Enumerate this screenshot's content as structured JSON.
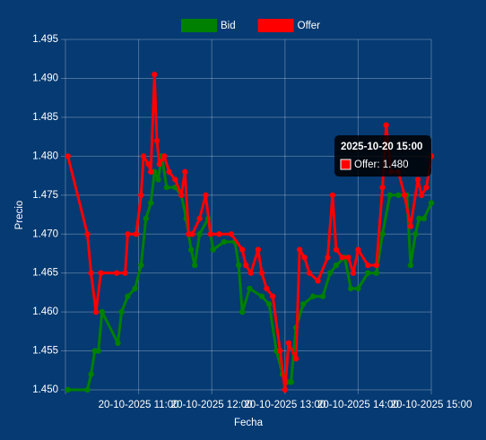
{
  "chart_data": {
    "type": "line",
    "x_label": "Fecha",
    "y_label": "Precio",
    "xlim": [
      "2025-10-20 10:00",
      "2025-10-20 15:00"
    ],
    "xticks": [
      {
        "value": "2025-10-20 11:00",
        "label": "20-10-2025 11:00"
      },
      {
        "value": "2025-10-20 12:00",
        "label": "20-10-2025 12:00"
      },
      {
        "value": "2025-10-20 13:00",
        "label": "20-10-2025 13:00"
      },
      {
        "value": "2025-10-20 14:00",
        "label": "20-10-2025 14:00"
      },
      {
        "value": "2025-10-20 15:00",
        "label": "20-10-2025 15:00"
      }
    ],
    "ylim": [
      1.45,
      1.495
    ],
    "yticks": [
      {
        "value": 1.45,
        "label": "1.450"
      },
      {
        "value": 1.455,
        "label": "1.455"
      },
      {
        "value": 1.46,
        "label": "1.460"
      },
      {
        "value": 1.465,
        "label": "1.465"
      },
      {
        "value": 1.47,
        "label": "1.470"
      },
      {
        "value": 1.475,
        "label": "1.475"
      },
      {
        "value": 1.48,
        "label": "1.480"
      },
      {
        "value": 1.485,
        "label": "1.485"
      },
      {
        "value": 1.49,
        "label": "1.490"
      },
      {
        "value": 1.495,
        "label": "1.495"
      }
    ],
    "grid": true,
    "legend": "top",
    "series": [
      {
        "name": "Bid",
        "color": "#008000",
        "x": [
          "2025-10-20 10:02",
          "2025-10-20 10:18",
          "2025-10-20 10:21",
          "2025-10-20 10:24",
          "2025-10-20 10:27",
          "2025-10-20 10:30",
          "2025-10-20 10:43",
          "2025-10-20 10:46",
          "2025-10-20 10:51",
          "2025-10-20 10:57",
          "2025-10-20 11:02",
          "2025-10-20 11:06",
          "2025-10-20 11:10",
          "2025-10-20 11:13",
          "2025-10-20 11:16",
          "2025-10-20 11:19",
          "2025-10-20 11:23",
          "2025-10-20 11:30",
          "2025-10-20 11:35",
          "2025-10-20 11:39",
          "2025-10-20 11:43",
          "2025-10-20 11:46",
          "2025-10-20 11:50",
          "2025-10-20 11:57",
          "2025-10-20 12:01",
          "2025-10-20 12:10",
          "2025-10-20 12:19",
          "2025-10-20 12:22",
          "2025-10-20 12:25",
          "2025-10-20 12:31",
          "2025-10-20 12:41",
          "2025-10-20 12:47",
          "2025-10-20 12:53",
          "2025-10-20 12:58",
          "2025-10-20 13:02",
          "2025-10-20 13:05",
          "2025-10-20 13:09",
          "2025-10-20 13:15",
          "2025-10-20 13:23",
          "2025-10-20 13:31",
          "2025-10-20 13:37",
          "2025-10-20 13:42",
          "2025-10-20 13:49",
          "2025-10-20 13:54",
          "2025-10-20 14:00",
          "2025-10-20 14:08",
          "2025-10-20 14:15",
          "2025-10-20 14:20",
          "2025-10-20 14:26",
          "2025-10-20 14:33",
          "2025-10-20 14:40",
          "2025-10-20 14:43",
          "2025-10-20 14:47",
          "2025-10-20 14:50",
          "2025-10-20 14:54",
          "2025-10-20 15:00"
        ],
        "values": [
          1.45,
          1.45,
          1.452,
          1.455,
          1.455,
          1.46,
          1.456,
          1.46,
          1.462,
          1.463,
          1.466,
          1.472,
          1.474,
          1.478,
          1.477,
          1.48,
          1.476,
          1.476,
          1.475,
          1.472,
          1.468,
          1.466,
          1.47,
          1.472,
          1.468,
          1.469,
          1.469,
          1.466,
          1.46,
          1.463,
          1.462,
          1.461,
          1.455,
          1.452,
          1.451,
          1.451,
          1.458,
          1.461,
          1.462,
          1.462,
          1.465,
          1.466,
          1.467,
          1.463,
          1.463,
          1.465,
          1.465,
          1.47,
          1.475,
          1.475,
          1.475,
          1.466,
          1.47,
          1.472,
          1.472,
          1.474
        ]
      },
      {
        "name": "Offer",
        "color": "#ff0000",
        "x": [
          "2025-10-20 10:02",
          "2025-10-20 10:18",
          "2025-10-20 10:21",
          "2025-10-20 10:25",
          "2025-10-20 10:29",
          "2025-10-20 10:42",
          "2025-10-20 10:49",
          "2025-10-20 10:51",
          "2025-10-20 10:58",
          "2025-10-20 11:02",
          "2025-10-20 11:04",
          "2025-10-20 11:08",
          "2025-10-20 11:10",
          "2025-10-20 11:13",
          "2025-10-20 11:15",
          "2025-10-20 11:17",
          "2025-10-20 11:21",
          "2025-10-20 11:25",
          "2025-10-20 11:30",
          "2025-10-20 11:35",
          "2025-10-20 11:38",
          "2025-10-20 11:41",
          "2025-10-20 11:44",
          "2025-10-20 11:50",
          "2025-10-20 11:55",
          "2025-10-20 11:59",
          "2025-10-20 12:06",
          "2025-10-20 12:16",
          "2025-10-20 12:25",
          "2025-10-20 12:28",
          "2025-10-20 12:32",
          "2025-10-20 12:38",
          "2025-10-20 12:41",
          "2025-10-20 12:45",
          "2025-10-20 12:50",
          "2025-10-20 12:56",
          "2025-10-20 13:00",
          "2025-10-20 13:03",
          "2025-10-20 13:09",
          "2025-10-20 13:12",
          "2025-10-20 13:16",
          "2025-10-20 13:20",
          "2025-10-20 13:27",
          "2025-10-20 13:35",
          "2025-10-20 13:39",
          "2025-10-20 13:42",
          "2025-10-20 13:47",
          "2025-10-20 13:52",
          "2025-10-20 13:56",
          "2025-10-20 14:00",
          "2025-10-20 14:08",
          "2025-10-20 14:15",
          "2025-10-20 14:20",
          "2025-10-20 14:23",
          "2025-10-20 14:27",
          "2025-10-20 14:33",
          "2025-10-20 14:38",
          "2025-10-20 14:43",
          "2025-10-20 14:49",
          "2025-10-20 14:52",
          "2025-10-20 14:56",
          "2025-10-20 15:00"
        ],
        "values": [
          1.48,
          1.47,
          1.465,
          1.46,
          1.465,
          1.465,
          1.465,
          1.47,
          1.47,
          1.475,
          1.48,
          1.479,
          1.478,
          1.4905,
          1.482,
          1.479,
          1.48,
          1.478,
          1.477,
          1.475,
          1.478,
          1.47,
          1.47,
          1.472,
          1.475,
          1.47,
          1.47,
          1.47,
          1.468,
          1.466,
          1.465,
          1.468,
          1.465,
          1.463,
          1.462,
          1.455,
          1.45,
          1.456,
          1.454,
          1.468,
          1.467,
          1.465,
          1.464,
          1.467,
          1.475,
          1.468,
          1.467,
          1.467,
          1.465,
          1.468,
          1.466,
          1.466,
          1.476,
          1.484,
          1.478,
          1.478,
          1.475,
          1.471,
          1.477,
          1.475,
          1.476,
          1.48
        ]
      }
    ],
    "tooltip": {
      "title": "2025-10-20 15:00",
      "label": "Offer: 1.480"
    }
  }
}
